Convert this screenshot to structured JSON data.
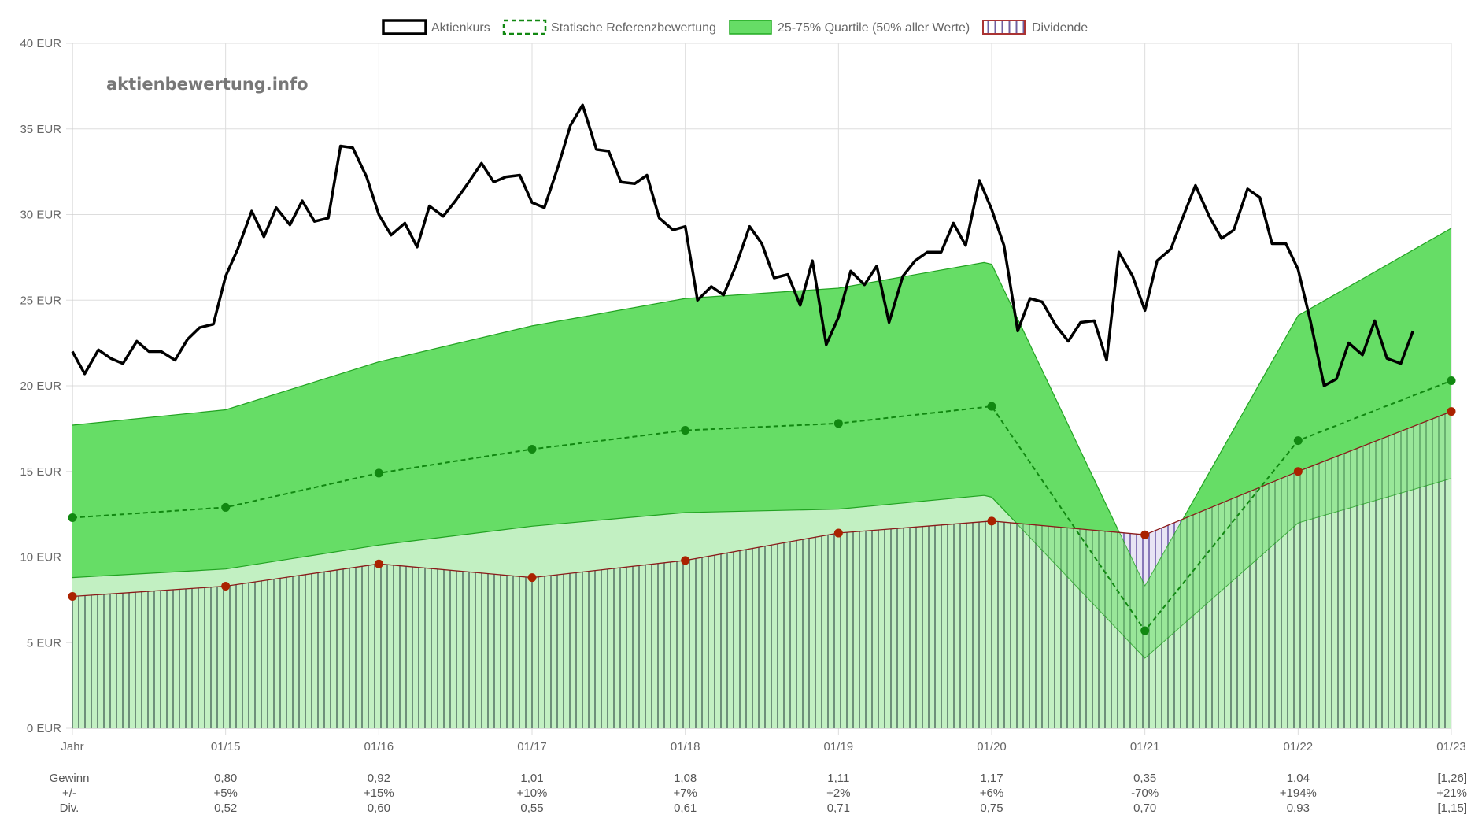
{
  "watermark": "aktienbewertung.info",
  "legend": [
    {
      "label": "Aktienkurs",
      "style": "price"
    },
    {
      "label": "Statische Referenzbewertung",
      "style": "reference"
    },
    {
      "label": "25-75% Quartile (50% aller Werte)",
      "style": "quartile"
    },
    {
      "label": "Dividende",
      "style": "dividend"
    }
  ],
  "colors": {
    "price": "#000000",
    "reference": "#118811",
    "quartile_fill": "#66dd66",
    "quartile_stroke": "#33aa33",
    "earnings_fill": "#c2f0c2",
    "earnings_line": "#8b1a1a",
    "earnings_dot": "#aa2200",
    "dividend_fill": "#cfc8e6",
    "dividend_stroke": "#7060a0",
    "grid": "#dddddd"
  },
  "chart_data": {
    "type": "line",
    "title": "",
    "ylabel": "EUR",
    "ylim": [
      0,
      40
    ],
    "y_ticks": [
      "0 EUR",
      "5 EUR",
      "10 EUR",
      "15 EUR",
      "20 EUR",
      "25 EUR",
      "30 EUR",
      "35 EUR",
      "40 EUR"
    ],
    "y_tick_values": [
      0,
      5,
      10,
      15,
      20,
      25,
      30,
      35,
      40
    ],
    "x_range": [
      2014,
      2023
    ],
    "x_tick_values": [
      2014,
      2015,
      2016,
      2017,
      2018,
      2019,
      2020,
      2021,
      2022,
      2023
    ],
    "x_tick_labels": [
      "Jahr",
      "01/15",
      "01/16",
      "01/17",
      "01/18",
      "01/19",
      "01/20",
      "01/21",
      "01/22",
      "01/23"
    ],
    "series": [
      {
        "name": "Aktienkurs",
        "points": [
          [
            2014.0,
            22.0
          ],
          [
            2014.08,
            20.7
          ],
          [
            2014.17,
            22.1
          ],
          [
            2014.25,
            21.6
          ],
          [
            2014.33,
            21.3
          ],
          [
            2014.42,
            22.6
          ],
          [
            2014.5,
            22.0
          ],
          [
            2014.58,
            22.0
          ],
          [
            2014.67,
            21.5
          ],
          [
            2014.75,
            22.7
          ],
          [
            2014.83,
            23.4
          ],
          [
            2014.92,
            23.6
          ],
          [
            2015.0,
            26.4
          ],
          [
            2015.08,
            28.0
          ],
          [
            2015.17,
            30.2
          ],
          [
            2015.25,
            28.7
          ],
          [
            2015.33,
            30.4
          ],
          [
            2015.42,
            29.4
          ],
          [
            2015.5,
            30.8
          ],
          [
            2015.58,
            29.6
          ],
          [
            2015.67,
            29.8
          ],
          [
            2015.75,
            34.0
          ],
          [
            2015.83,
            33.9
          ],
          [
            2015.92,
            32.2
          ],
          [
            2016.0,
            30.0
          ],
          [
            2016.08,
            28.8
          ],
          [
            2016.17,
            29.5
          ],
          [
            2016.25,
            28.1
          ],
          [
            2016.33,
            30.5
          ],
          [
            2016.42,
            29.9
          ],
          [
            2016.5,
            30.8
          ],
          [
            2016.58,
            31.8
          ],
          [
            2016.67,
            33.0
          ],
          [
            2016.75,
            31.9
          ],
          [
            2016.83,
            32.2
          ],
          [
            2016.92,
            32.3
          ],
          [
            2017.0,
            30.7
          ],
          [
            2017.08,
            30.4
          ],
          [
            2017.17,
            32.8
          ],
          [
            2017.25,
            35.2
          ],
          [
            2017.33,
            36.4
          ],
          [
            2017.42,
            33.8
          ],
          [
            2017.5,
            33.7
          ],
          [
            2017.58,
            31.9
          ],
          [
            2017.67,
            31.8
          ],
          [
            2017.75,
            32.3
          ],
          [
            2017.83,
            29.8
          ],
          [
            2017.92,
            29.1
          ],
          [
            2018.0,
            29.3
          ],
          [
            2018.08,
            25.0
          ],
          [
            2018.17,
            25.8
          ],
          [
            2018.25,
            25.3
          ],
          [
            2018.33,
            27.0
          ],
          [
            2018.42,
            29.3
          ],
          [
            2018.5,
            28.3
          ],
          [
            2018.58,
            26.3
          ],
          [
            2018.67,
            26.5
          ],
          [
            2018.75,
            24.7
          ],
          [
            2018.83,
            27.3
          ],
          [
            2018.92,
            22.4
          ],
          [
            2019.0,
            24.0
          ],
          [
            2019.08,
            26.7
          ],
          [
            2019.17,
            25.9
          ],
          [
            2019.25,
            27.0
          ],
          [
            2019.33,
            23.7
          ],
          [
            2019.42,
            26.4
          ],
          [
            2019.5,
            27.3
          ],
          [
            2019.58,
            27.8
          ],
          [
            2019.67,
            27.8
          ],
          [
            2019.75,
            29.5
          ],
          [
            2019.83,
            28.2
          ],
          [
            2019.92,
            32.0
          ],
          [
            2020.0,
            30.3
          ],
          [
            2020.08,
            28.2
          ],
          [
            2020.17,
            23.2
          ],
          [
            2020.25,
            25.1
          ],
          [
            2020.33,
            24.9
          ],
          [
            2020.42,
            23.5
          ],
          [
            2020.5,
            22.6
          ],
          [
            2020.58,
            23.7
          ],
          [
            2020.67,
            23.8
          ],
          [
            2020.75,
            21.5
          ],
          [
            2020.83,
            27.8
          ],
          [
            2020.92,
            26.4
          ],
          [
            2021.0,
            24.4
          ],
          [
            2021.08,
            27.3
          ],
          [
            2021.17,
            28.0
          ],
          [
            2021.25,
            29.9
          ],
          [
            2021.33,
            31.7
          ],
          [
            2021.42,
            29.9
          ],
          [
            2021.5,
            28.6
          ],
          [
            2021.58,
            29.1
          ],
          [
            2021.67,
            31.5
          ],
          [
            2021.75,
            31.0
          ],
          [
            2021.83,
            28.3
          ],
          [
            2021.92,
            28.3
          ],
          [
            2022.0,
            26.8
          ],
          [
            2022.08,
            23.8
          ],
          [
            2022.17,
            20.0
          ],
          [
            2022.25,
            20.4
          ],
          [
            2022.33,
            22.5
          ],
          [
            2022.42,
            21.8
          ],
          [
            2022.5,
            23.8
          ],
          [
            2022.58,
            21.6
          ],
          [
            2022.67,
            21.3
          ],
          [
            2022.75,
            23.2
          ]
        ]
      },
      {
        "name": "Statische Referenzbewertung",
        "points": [
          [
            2014,
            12.3
          ],
          [
            2015,
            12.9
          ],
          [
            2016,
            14.9
          ],
          [
            2017,
            16.3
          ],
          [
            2018,
            17.4
          ],
          [
            2019,
            17.8
          ],
          [
            2020,
            18.8
          ],
          [
            2021,
            5.7
          ],
          [
            2022,
            16.8
          ],
          [
            2023,
            20.3
          ]
        ]
      },
      {
        "name": "25-75% Quartile (50% aller Werte)",
        "upper": [
          [
            2014,
            17.7
          ],
          [
            2015,
            18.6
          ],
          [
            2016,
            21.4
          ],
          [
            2017,
            23.5
          ],
          [
            2018,
            25.1
          ],
          [
            2019,
            25.7
          ],
          [
            2019.95,
            27.2
          ],
          [
            2020,
            27.1
          ],
          [
            2021,
            8.3
          ],
          [
            2022,
            24.1
          ],
          [
            2023,
            29.2
          ]
        ],
        "lower": [
          [
            2014,
            8.8
          ],
          [
            2015,
            9.3
          ],
          [
            2016,
            10.7
          ],
          [
            2017,
            11.8
          ],
          [
            2018,
            12.6
          ],
          [
            2019,
            12.8
          ],
          [
            2019.95,
            13.6
          ],
          [
            2020,
            13.5
          ],
          [
            2021,
            4.1
          ],
          [
            2022,
            12.0
          ],
          [
            2023,
            14.6
          ]
        ]
      },
      {
        "name": "Gewinn-Linie",
        "points": [
          [
            2014,
            7.7
          ],
          [
            2015,
            8.3
          ],
          [
            2016,
            9.6
          ],
          [
            2017,
            8.8
          ],
          [
            2018,
            9.8
          ],
          [
            2019,
            11.4
          ],
          [
            2020,
            12.1
          ],
          [
            2021,
            11.3
          ],
          [
            2022,
            15.0
          ],
          [
            2023,
            18.5
          ]
        ]
      }
    ],
    "table": {
      "row_labels": [
        "Gewinn",
        "+/-",
        "Div."
      ],
      "columns": [
        "01/15",
        "01/16",
        "01/17",
        "01/18",
        "01/19",
        "01/20",
        "01/21",
        "01/22",
        "01/23"
      ],
      "gewinn": [
        "0,80",
        "0,92",
        "1,01",
        "1,08",
        "1,11",
        "1,17",
        "0,35",
        "1,04",
        "[1,26]"
      ],
      "change": [
        "+5%",
        "+15%",
        "+10%",
        "+7%",
        "+2%",
        "+6%",
        "-70%",
        "+194%",
        "+21%"
      ],
      "dividend": [
        "0,52",
        "0,60",
        "0,55",
        "0,61",
        "0,71",
        "0,75",
        "0,70",
        "0,93",
        "[1,15]"
      ]
    }
  }
}
